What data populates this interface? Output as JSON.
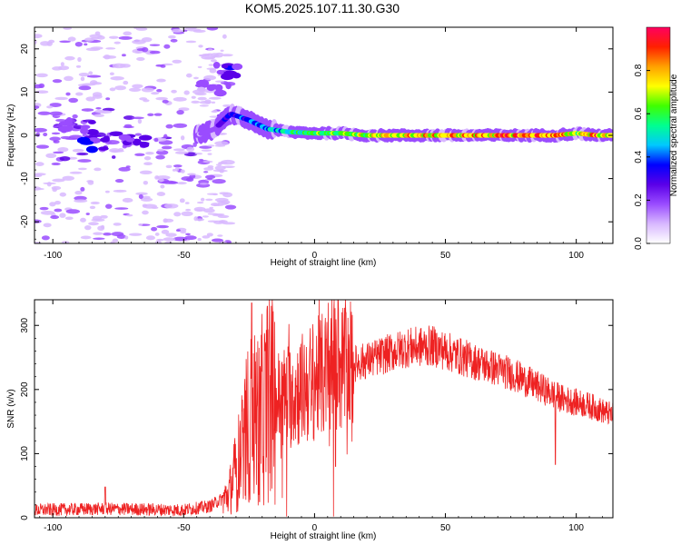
{
  "title": "KOM5.2025.107.11.30.G30",
  "chart_data": [
    {
      "type": "heatmap",
      "title": "",
      "xlabel": "Height of straight line (km)",
      "ylabel": "Frequency (Hz)",
      "xlim": [
        -107,
        114
      ],
      "ylim": [
        -25,
        25
      ],
      "xticks": [
        -100,
        -50,
        0,
        50,
        100
      ],
      "yticks": [
        -20,
        -10,
        0,
        10,
        20
      ],
      "colorbar": {
        "label": "Normalized spectral amplitude",
        "range": [
          0,
          1
        ],
        "ticks": [
          0.0,
          0.2,
          0.4,
          0.6,
          0.8
        ],
        "tick_labels": [
          "0.0",
          "0.2",
          "0.4",
          "0.6",
          "0.8"
        ],
        "colors": [
          "#ffffff",
          "#d8b8ff",
          "#9a4cff",
          "#5a00e8",
          "#0000ff",
          "#00c8ff",
          "#00ff90",
          "#40ff00",
          "#ffff00",
          "#ffa000",
          "#ff2000",
          "#ff0060"
        ]
      },
      "ridge": [
        {
          "x": -45,
          "freq": 0.0,
          "amp": 0.15
        },
        {
          "x": -38,
          "freq": 1.5,
          "amp": 0.25
        },
        {
          "x": -32,
          "freq": 5.0,
          "amp": 0.35
        },
        {
          "x": -25,
          "freq": 3.5,
          "amp": 0.4
        },
        {
          "x": -18,
          "freq": 1.5,
          "amp": 0.45
        },
        {
          "x": -10,
          "freq": 0.8,
          "amp": 0.55
        },
        {
          "x": 0,
          "freq": 0.5,
          "amp": 0.65
        },
        {
          "x": 10,
          "freq": 0.5,
          "amp": 0.7
        },
        {
          "x": 20,
          "freq": 0.0,
          "amp": 0.72
        },
        {
          "x": 35,
          "freq": 0.0,
          "amp": 0.8
        },
        {
          "x": 50,
          "freq": 0.0,
          "amp": 0.82
        },
        {
          "x": 65,
          "freq": 0.0,
          "amp": 0.85
        },
        {
          "x": 80,
          "freq": 0.0,
          "amp": 0.92
        },
        {
          "x": 92,
          "freq": 0.0,
          "amp": 0.88
        },
        {
          "x": 100,
          "freq": 0.5,
          "amp": 0.75
        },
        {
          "x": 108,
          "freq": 0.0,
          "amp": 0.9
        },
        {
          "x": 114,
          "freq": 0.0,
          "amp": 0.7
        }
      ],
      "features": [
        {
          "x": -33,
          "freq": 15.0,
          "amp": 0.3
        },
        {
          "x": -38,
          "freq": 11.0,
          "amp": 0.2
        },
        {
          "x": -85,
          "freq": -2.0,
          "amp": 0.35
        },
        {
          "x": -70,
          "freq": -1.0,
          "amp": 0.28
        },
        {
          "x": -90,
          "freq": 2.0,
          "amp": 0.22
        }
      ]
    },
    {
      "type": "line",
      "title": "",
      "xlabel": "Height of straight line (km)",
      "ylabel": "SNR (v/v)",
      "xlim": [
        -107,
        114
      ],
      "ylim": [
        0,
        340
      ],
      "xticks": [
        -100,
        -50,
        0,
        50,
        100
      ],
      "yticks": [
        0,
        100,
        200,
        300
      ],
      "color": "#ee2222",
      "envelope": [
        {
          "x": -107,
          "y": 12
        },
        {
          "x": -80,
          "y": 14
        },
        {
          "x": -50,
          "y": 12
        },
        {
          "x": -40,
          "y": 18
        },
        {
          "x": -33,
          "y": 35
        },
        {
          "x": -28,
          "y": 100
        },
        {
          "x": -25,
          "y": 150
        },
        {
          "x": -18,
          "y": 175
        },
        {
          "x": -10,
          "y": 190
        },
        {
          "x": -5,
          "y": 200
        },
        {
          "x": 0,
          "y": 215
        },
        {
          "x": 10,
          "y": 235
        },
        {
          "x": 20,
          "y": 245
        },
        {
          "x": 35,
          "y": 265
        },
        {
          "x": 45,
          "y": 268
        },
        {
          "x": 60,
          "y": 245
        },
        {
          "x": 75,
          "y": 225
        },
        {
          "x": 85,
          "y": 205
        },
        {
          "x": 95,
          "y": 185
        },
        {
          "x": 105,
          "y": 175
        },
        {
          "x": 114,
          "y": 160
        }
      ],
      "spikes": [
        {
          "x": -24,
          "y": 335
        },
        {
          "x": -18,
          "y": 330
        },
        {
          "x": 9,
          "y": 340
        },
        {
          "x": 12,
          "y": 320
        },
        {
          "x": 8,
          "y": 80
        },
        {
          "x": -21,
          "y": 25
        },
        {
          "x": 92,
          "y": 83
        },
        {
          "x": -80,
          "y": 48
        }
      ]
    }
  ]
}
